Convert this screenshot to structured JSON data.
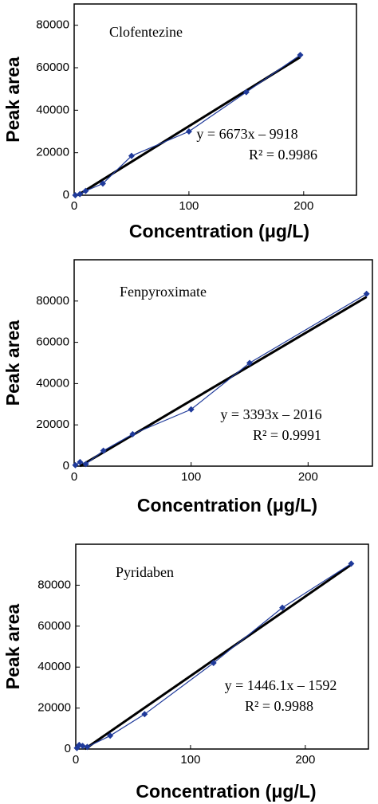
{
  "chart_data": [
    {
      "type": "line",
      "title": "Clofentezine",
      "xlabel": "Concentration (μg/L)",
      "ylabel": "Peak area",
      "annotations": [
        "y = 6673x – 9918",
        "R² = 0.9986"
      ],
      "x": [
        1,
        5,
        10,
        25,
        50,
        100,
        150,
        197
      ],
      "values": [
        0,
        500,
        2000,
        5500,
        18500,
        30000,
        48500,
        66000
      ],
      "fit": {
        "x": [
          3,
          197
        ],
        "values": [
          0,
          65000
        ]
      },
      "color": "#1f3a9a",
      "fit_color": "#000000",
      "xlim": [
        0,
        246
      ],
      "ylim": [
        0,
        90000
      ],
      "xticks": [
        0,
        100,
        200
      ],
      "yticks": [
        0,
        20000,
        40000,
        60000,
        80000
      ]
    },
    {
      "type": "line",
      "title": "Fenpyroximate",
      "xlabel": "Concentration (μg/L)",
      "ylabel": "Peak area",
      "annotations": [
        "y = 3393x – 2016",
        "R² = 0.9991"
      ],
      "x": [
        1,
        5,
        10,
        25,
        50,
        100,
        150,
        250
      ],
      "values": [
        500,
        2000,
        1000,
        7500,
        15500,
        27500,
        50000,
        83500
      ],
      "fit": {
        "x": [
          5,
          250
        ],
        "values": [
          0,
          82000
        ]
      },
      "color": "#1f3a9a",
      "fit_color": "#000000",
      "xlim": [
        0,
        255
      ],
      "ylim": [
        0,
        100000
      ],
      "xticks": [
        0,
        100,
        200
      ],
      "yticks": [
        0,
        20000,
        40000,
        60000,
        80000
      ]
    },
    {
      "type": "line",
      "title": "Pyridaben",
      "xlabel": "Concentration (μg/L)",
      "ylabel": "Peak area",
      "annotations": [
        "y = 1446.1x – 1592",
        "R² = 0.9988"
      ],
      "x": [
        1,
        3,
        6,
        10,
        30,
        60,
        120,
        180,
        240
      ],
      "values": [
        500,
        2000,
        1500,
        1000,
        6500,
        17000,
        42000,
        69000,
        90500
      ],
      "fit": {
        "x": [
          8,
          240
        ],
        "values": [
          0,
          90000
        ]
      },
      "color": "#1f3a9a",
      "fit_color": "#000000",
      "xlim": [
        0,
        255
      ],
      "ylim": [
        0,
        100000
      ],
      "xticks": [
        0,
        100,
        200
      ],
      "yticks": [
        0,
        20000,
        40000,
        60000,
        80000
      ]
    }
  ]
}
